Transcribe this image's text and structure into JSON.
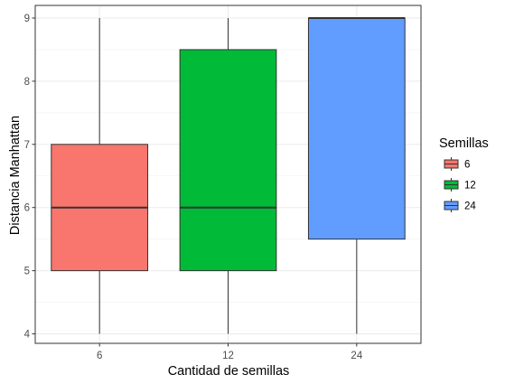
{
  "chart_data": {
    "type": "boxplot",
    "title": "",
    "xlabel": "Cantidad de semillas",
    "ylabel": "Distancia Manhattan",
    "categories": [
      "6",
      "12",
      "24"
    ],
    "ylim": [
      3.85,
      9.2
    ],
    "yticks": [
      "4",
      "5",
      "6",
      "7",
      "8",
      "9"
    ],
    "grid": true,
    "legend": {
      "title": "Semillas",
      "position": "right",
      "entries": [
        "6",
        "12",
        "24"
      ]
    },
    "series": [
      {
        "name": "6",
        "color": "#F8766D",
        "min": 4,
        "q1": 5,
        "median": 6,
        "q3": 7,
        "max": 9
      },
      {
        "name": "12",
        "color": "#00BA38",
        "min": 4,
        "q1": 5,
        "median": 6,
        "q3": 8.5,
        "max": 9
      },
      {
        "name": "24",
        "color": "#619CFF",
        "min": 4,
        "q1": 5.5,
        "median": 9,
        "q3": 9,
        "max": 9
      }
    ]
  }
}
